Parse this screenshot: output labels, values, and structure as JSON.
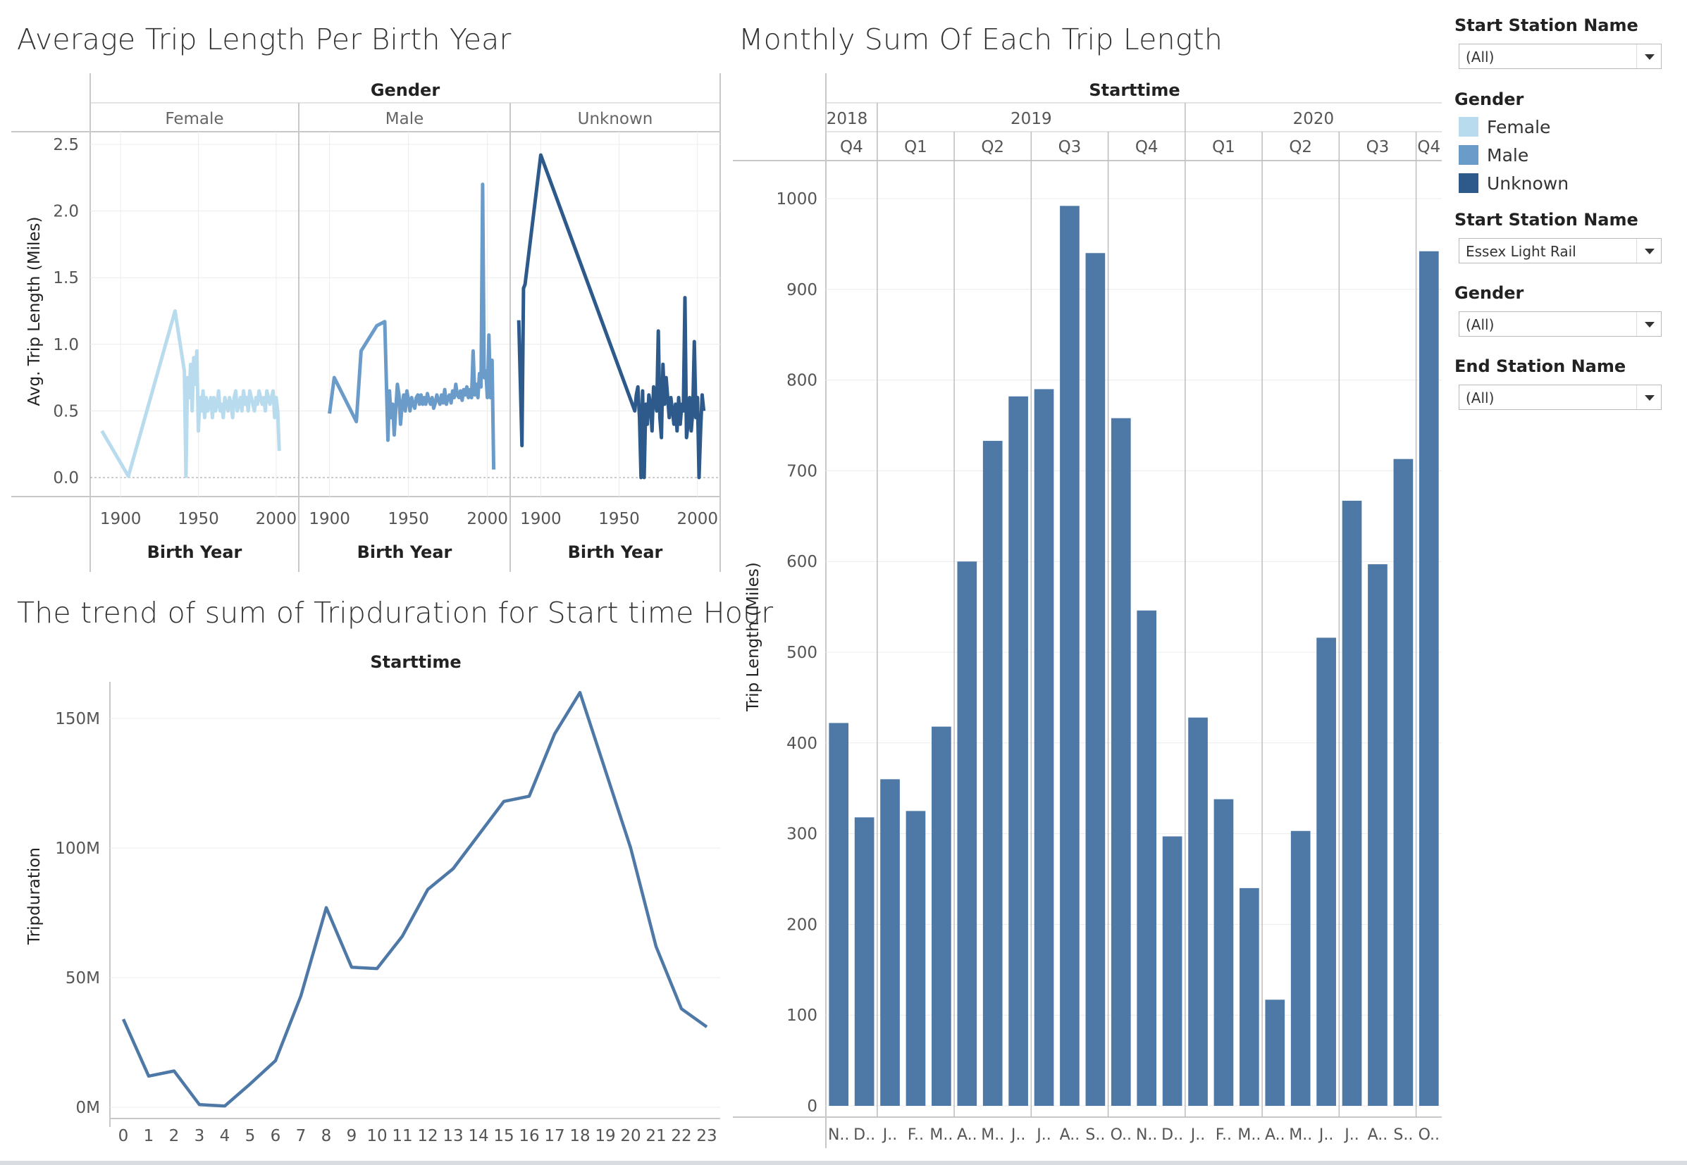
{
  "titles": {
    "birth_year": "Average Trip Length Per Birth Year",
    "monthly": "Monthly Sum Of Each Trip Length",
    "hour": "The trend of sum of Tripduration for Start time Hour"
  },
  "colors": {
    "female": "#b8dbee",
    "male": "#6b9bc8",
    "unknown": "#2d5a8a",
    "bar": "#4e79a7",
    "hour_line": "#4e79a7"
  },
  "filters": {
    "start_station_1": {
      "label": "Start Station Name",
      "value": "(All)"
    },
    "legend": {
      "label": "Gender",
      "items": [
        {
          "name": "Female",
          "color": "#b8dbee"
        },
        {
          "name": "Male",
          "color": "#6b9bc8"
        },
        {
          "name": "Unknown",
          "color": "#2d5a8a"
        }
      ]
    },
    "start_station_2": {
      "label": "Start Station Name",
      "value": "Essex Light Rail"
    },
    "gender": {
      "label": "Gender",
      "value": "(All)"
    },
    "end_station": {
      "label": "End Station Name",
      "value": "(All)"
    }
  },
  "chart_data": [
    {
      "type": "line",
      "title": "Average Trip Length Per Birth Year",
      "panel_header": "Gender",
      "xlabel": "Birth Year",
      "ylabel": "Avg. Trip Length (Miles)",
      "xticks": [
        1900,
        1950,
        2000
      ],
      "yticks": [
        "0.0",
        "0.5",
        "1.0",
        "1.5",
        "2.0",
        "2.5"
      ],
      "ylim": [
        0,
        2.5
      ],
      "xlim": [
        1885,
        2010
      ],
      "series": [
        {
          "name": "Female",
          "x": [
            1888,
            1905,
            1935,
            1941,
            1942,
            1943,
            1944,
            1945,
            1946,
            1947,
            1948,
            1949,
            1950,
            1951,
            1952,
            1953,
            1954,
            1955,
            1956,
            1957,
            1958,
            1959,
            1960,
            1961,
            1962,
            1963,
            1964,
            1965,
            1966,
            1967,
            1968,
            1969,
            1970,
            1971,
            1972,
            1973,
            1974,
            1975,
            1976,
            1977,
            1978,
            1979,
            1980,
            1981,
            1982,
            1983,
            1984,
            1985,
            1986,
            1987,
            1988,
            1989,
            1990,
            1991,
            1992,
            1993,
            1994,
            1995,
            1996,
            1997,
            1998,
            1999,
            2000,
            2001,
            2002
          ],
          "y": [
            0.35,
            0.01,
            1.25,
            0.8,
            0.01,
            0.75,
            0.6,
            0.85,
            0.5,
            0.9,
            0.7,
            0.95,
            0.35,
            0.6,
            0.5,
            0.65,
            0.45,
            0.6,
            0.5,
            0.55,
            0.6,
            0.45,
            0.6,
            0.5,
            0.55,
            0.65,
            0.5,
            0.55,
            0.45,
            0.6,
            0.55,
            0.5,
            0.6,
            0.55,
            0.45,
            0.6,
            0.65,
            0.5,
            0.55,
            0.6,
            0.5,
            0.65,
            0.55,
            0.6,
            0.5,
            0.65,
            0.6,
            0.55,
            0.5,
            0.6,
            0.55,
            0.65,
            0.6,
            0.55,
            0.6,
            0.5,
            0.65,
            0.6,
            0.55,
            0.6,
            0.65,
            0.45,
            0.6,
            0.5,
            0.2
          ]
        },
        {
          "name": "Male",
          "x": [
            1900,
            1903,
            1917,
            1920,
            1930,
            1935,
            1937,
            1938,
            1939,
            1940,
            1941,
            1943,
            1944,
            1945,
            1946,
            1947,
            1948,
            1949,
            1950,
            1951,
            1952,
            1953,
            1954,
            1955,
            1956,
            1957,
            1958,
            1959,
            1960,
            1961,
            1962,
            1963,
            1964,
            1965,
            1966,
            1967,
            1968,
            1969,
            1970,
            1971,
            1972,
            1973,
            1974,
            1975,
            1976,
            1977,
            1978,
            1979,
            1980,
            1981,
            1982,
            1983,
            1984,
            1985,
            1986,
            1987,
            1988,
            1989,
            1990,
            1991,
            1992,
            1993,
            1994,
            1995,
            1996,
            1997,
            1998,
            1999,
            2000,
            2001,
            2002,
            2003,
            2004
          ],
          "y": [
            0.48,
            0.75,
            0.42,
            0.95,
            1.14,
            1.17,
            0.28,
            0.65,
            0.45,
            0.55,
            0.32,
            0.7,
            0.62,
            0.4,
            0.55,
            0.62,
            0.5,
            0.65,
            0.58,
            0.5,
            0.6,
            0.55,
            0.52,
            0.6,
            0.62,
            0.55,
            0.62,
            0.55,
            0.6,
            0.55,
            0.63,
            0.58,
            0.55,
            0.6,
            0.52,
            0.56,
            0.62,
            0.58,
            0.55,
            0.62,
            0.56,
            0.66,
            0.55,
            0.6,
            0.62,
            0.56,
            0.65,
            0.6,
            0.7,
            0.62,
            0.6,
            0.65,
            0.58,
            0.66,
            0.62,
            0.68,
            0.6,
            0.66,
            0.6,
            0.95,
            0.62,
            0.7,
            0.6,
            0.78,
            0.68,
            2.2,
            0.75,
            0.8,
            0.6,
            1.07,
            0.6,
            0.88,
            0.06
          ]
        },
        {
          "name": "Unknown",
          "x": [
            1886,
            1887,
            1888,
            1889,
            1890,
            1900,
            1960,
            1961,
            1962,
            1963,
            1964,
            1965,
            1966,
            1967,
            1968,
            1969,
            1970,
            1971,
            1972,
            1973,
            1974,
            1975,
            1976,
            1977,
            1978,
            1979,
            1980,
            1981,
            1982,
            1983,
            1984,
            1985,
            1986,
            1987,
            1988,
            1989,
            1990,
            1991,
            1992,
            1993,
            1994,
            1995,
            1996,
            1997,
            1998,
            1999,
            2000,
            2001,
            2002,
            2003,
            2004
          ],
          "y": [
            1.18,
            0.72,
            0.24,
            1.42,
            1.45,
            2.42,
            0.5,
            0.62,
            0.68,
            0.45,
            0.0,
            0.65,
            0.0,
            0.55,
            0.4,
            0.62,
            0.55,
            0.35,
            0.68,
            0.58,
            0.5,
            1.1,
            0.45,
            0.3,
            0.85,
            0.55,
            0.75,
            0.6,
            0.45,
            0.6,
            0.5,
            0.4,
            0.55,
            0.35,
            0.6,
            0.4,
            0.55,
            0.5,
            1.35,
            0.3,
            0.4,
            0.6,
            0.35,
            0.5,
            1.02,
            0.45,
            0.6,
            0.0,
            0.35,
            0.62,
            0.5
          ]
        }
      ]
    },
    {
      "type": "bar",
      "title": "Monthly Sum Of Each Trip Length",
      "header": "Starttime",
      "ylabel": "Trip Length (Miles)",
      "ylim": [
        0,
        1000
      ],
      "yticks": [
        "0",
        "100",
        "200",
        "300",
        "400",
        "500",
        "600",
        "700",
        "800",
        "900",
        "1000"
      ],
      "years": [
        "2018",
        "2019",
        "2020"
      ],
      "quarters": [
        "Q4",
        "Q1",
        "Q2",
        "Q3",
        "Q4",
        "Q1",
        "Q2",
        "Q3",
        "Q4"
      ],
      "categories": [
        "N..",
        "D..",
        "J..",
        "F..",
        "M..",
        "A..",
        "M..",
        "J..",
        "J..",
        "A..",
        "S..",
        "O..",
        "N..",
        "D..",
        "J..",
        "F..",
        "M..",
        "A..",
        "M..",
        "J..",
        "J..",
        "A..",
        "S..",
        "O.."
      ],
      "values": [
        422,
        318,
        360,
        325,
        418,
        600,
        733,
        782,
        790,
        992,
        940,
        758,
        546,
        297,
        428,
        338,
        240,
        117,
        303,
        516,
        667,
        597,
        713,
        942
      ]
    },
    {
      "type": "line",
      "title": "The trend of sum of Tripduration for Start time Hour",
      "header": "Starttime",
      "ylabel": "Tripduration",
      "yticks": [
        "0M",
        "50M",
        "100M",
        "150M"
      ],
      "ylim": [
        0,
        165
      ],
      "categories": [
        "0",
        "1",
        "2",
        "3",
        "4",
        "5",
        "6",
        "7",
        "8",
        "9",
        "10",
        "11",
        "12",
        "13",
        "14",
        "15",
        "16",
        "17",
        "18",
        "19",
        "20",
        "21",
        "22",
        "23"
      ],
      "values": [
        34,
        12,
        14,
        1,
        0.5,
        9,
        18,
        43,
        77,
        54,
        53.5,
        66,
        84,
        92,
        105,
        118,
        120,
        144,
        160,
        130,
        100,
        62,
        38,
        31
      ]
    }
  ]
}
